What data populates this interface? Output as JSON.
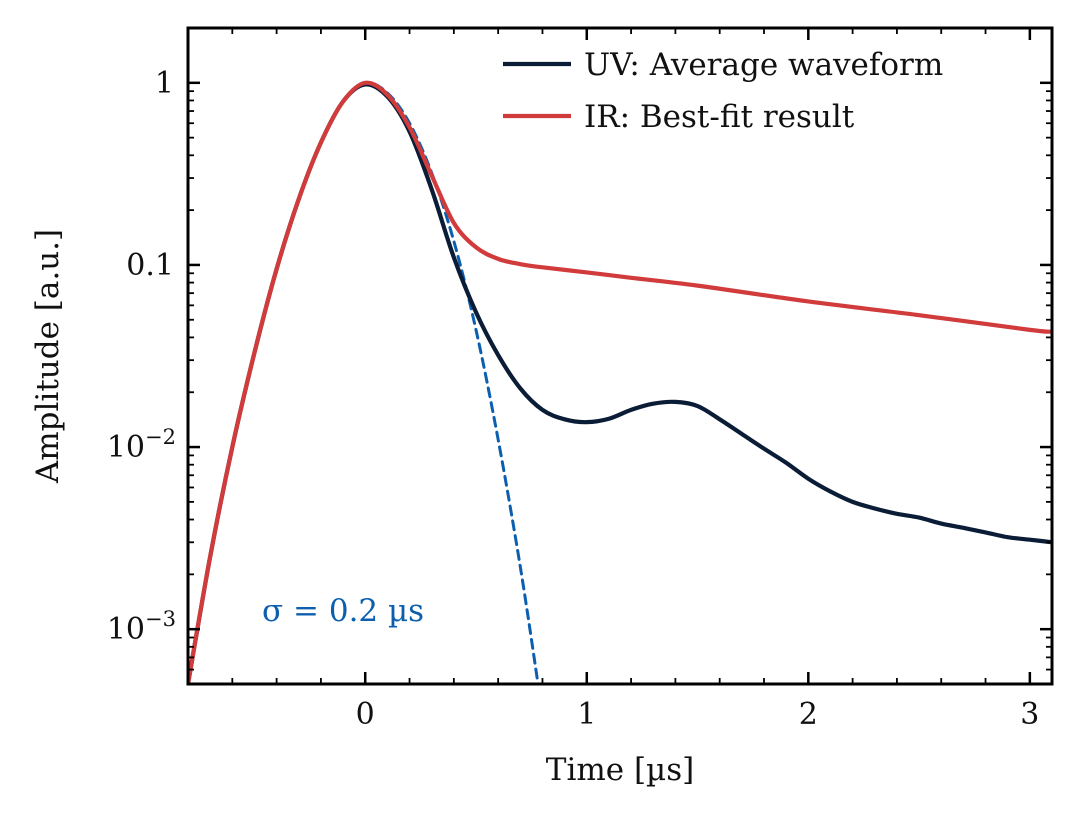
{
  "chart_data": {
    "type": "line",
    "title": "",
    "xlabel": "Time [µs]",
    "ylabel": "Amplitude [a.u.]",
    "xlim": [
      -0.8,
      3.1
    ],
    "ylim": [
      0.0005,
      2.0
    ],
    "yscale": "log",
    "grid": false,
    "legend_position": "top-right",
    "x_ticks": [
      {
        "value": 0,
        "label": "0"
      },
      {
        "value": 1,
        "label": "1"
      },
      {
        "value": 2,
        "label": "2"
      },
      {
        "value": 3,
        "label": "3"
      }
    ],
    "y_ticks": [
      {
        "value": 1,
        "label": "1",
        "exp": ""
      },
      {
        "value": 0.1,
        "label": "0.1",
        "exp": ""
      },
      {
        "value": 0.01,
        "label": "10",
        "exp": "−2"
      },
      {
        "value": 0.001,
        "label": "10",
        "exp": "−3"
      }
    ],
    "series": [
      {
        "name": "UV: Average waveform",
        "color": "#0b1d36",
        "style": "solid",
        "x": [
          -0.8,
          -0.7,
          -0.6,
          -0.5,
          -0.4,
          -0.3,
          -0.2,
          -0.1,
          0.0,
          0.1,
          0.2,
          0.3,
          0.4,
          0.5,
          0.6,
          0.7,
          0.8,
          0.9,
          1.0,
          1.1,
          1.2,
          1.3,
          1.4,
          1.5,
          1.6,
          1.7,
          1.8,
          1.9,
          2.0,
          2.1,
          2.2,
          2.3,
          2.4,
          2.5,
          2.6,
          2.7,
          2.8,
          2.9,
          3.0,
          3.1
        ],
        "y": [
          0.0005,
          0.0025,
          0.01,
          0.033,
          0.095,
          0.23,
          0.47,
          0.79,
          0.98,
          0.84,
          0.54,
          0.26,
          0.11,
          0.055,
          0.032,
          0.021,
          0.016,
          0.0142,
          0.0137,
          0.0143,
          0.016,
          0.0173,
          0.0177,
          0.0168,
          0.0142,
          0.0118,
          0.0098,
          0.0082,
          0.0067,
          0.0057,
          0.005,
          0.0046,
          0.0043,
          0.0041,
          0.0038,
          0.0036,
          0.0034,
          0.0032,
          0.0031,
          0.003
        ]
      },
      {
        "name": "IR: Best-fit result",
        "color": "#d13b3b",
        "style": "solid",
        "x": [
          -0.8,
          -0.7,
          -0.6,
          -0.5,
          -0.4,
          -0.3,
          -0.2,
          -0.1,
          0.0,
          0.1,
          0.2,
          0.3,
          0.4,
          0.5,
          0.6,
          0.7,
          0.8,
          1.0,
          1.2,
          1.5,
          2.0,
          2.5,
          3.0,
          3.1
        ],
        "y": [
          0.0005,
          0.0025,
          0.01,
          0.033,
          0.095,
          0.23,
          0.47,
          0.79,
          1.0,
          0.86,
          0.57,
          0.31,
          0.17,
          0.125,
          0.108,
          0.101,
          0.097,
          0.091,
          0.085,
          0.077,
          0.063,
          0.053,
          0.044,
          0.043
        ]
      },
      {
        "name": "Gaussian σ = 0.2 µs",
        "color": "#0b5fae",
        "style": "dashed",
        "x": [
          -0.8,
          -0.7,
          -0.6,
          -0.5,
          -0.4,
          -0.3,
          -0.2,
          -0.1,
          0.0,
          0.1,
          0.2,
          0.3,
          0.4,
          0.5,
          0.6,
          0.7,
          0.78
        ],
        "y": [
          0.0005,
          0.0025,
          0.01,
          0.033,
          0.095,
          0.23,
          0.47,
          0.79,
          1.0,
          0.88,
          0.6,
          0.32,
          0.135,
          0.044,
          0.011,
          0.0022,
          0.0005
        ]
      }
    ],
    "legend": [
      {
        "label": "UV: Average waveform",
        "color": "#0b1d36"
      },
      {
        "label": "IR: Best-fit result",
        "color": "#d13b3b"
      }
    ],
    "annotations": [
      {
        "text": "σ = 0.2 µs",
        "color": "#0b5fae"
      }
    ]
  }
}
